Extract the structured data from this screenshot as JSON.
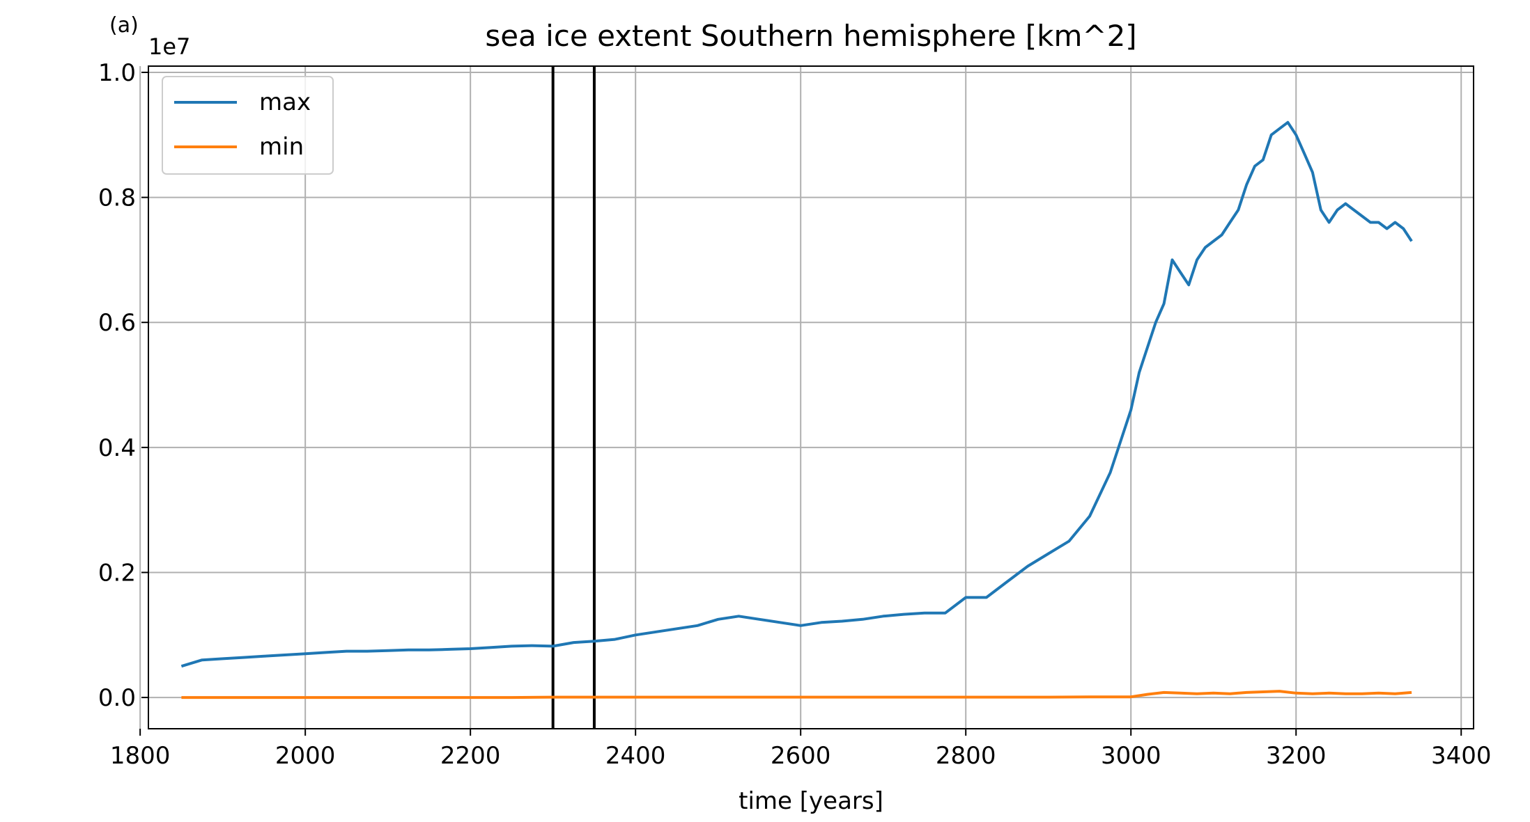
{
  "panel_label": "(a)",
  "chart_data": {
    "type": "line",
    "title": "sea ice extent Southern hemisphere [km^2]",
    "xlabel": "time [years]",
    "ylabel": "",
    "y_offset_label": "1e7",
    "xlim": [
      1810,
      3415
    ],
    "ylim": [
      -0.05,
      1.01
    ],
    "y_scale": 10000000,
    "xticks": [
      1800,
      2000,
      2200,
      2400,
      2600,
      2800,
      3000,
      3200,
      3400
    ],
    "yticks": [
      0.0,
      0.2,
      0.4,
      0.6,
      0.8,
      1.0
    ],
    "ytick_labels": [
      "0.0",
      "0.2",
      "0.4",
      "0.6",
      "0.8",
      "1.0"
    ],
    "grid": true,
    "legend_position": "top-left",
    "vlines": [
      2300,
      2350
    ],
    "series": [
      {
        "name": "max",
        "color": "#1f77b4",
        "x": [
          1850,
          1875,
          1900,
          1925,
          1950,
          1975,
          2000,
          2025,
          2050,
          2075,
          2100,
          2125,
          2150,
          2175,
          2200,
          2225,
          2250,
          2275,
          2300,
          2325,
          2350,
          2375,
          2400,
          2425,
          2450,
          2475,
          2500,
          2525,
          2550,
          2575,
          2600,
          2625,
          2650,
          2675,
          2700,
          2725,
          2750,
          2775,
          2800,
          2825,
          2850,
          2875,
          2900,
          2925,
          2950,
          2975,
          3000,
          3010,
          3020,
          3030,
          3040,
          3050,
          3060,
          3070,
          3080,
          3090,
          3100,
          3110,
          3120,
          3130,
          3140,
          3150,
          3160,
          3170,
          3180,
          3190,
          3200,
          3210,
          3220,
          3230,
          3240,
          3250,
          3260,
          3270,
          3280,
          3290,
          3300,
          3310,
          3320,
          3330,
          3340
        ],
        "values": [
          0.05,
          0.06,
          0.062,
          0.064,
          0.066,
          0.068,
          0.07,
          0.072,
          0.074,
          0.074,
          0.075,
          0.076,
          0.076,
          0.077,
          0.078,
          0.08,
          0.082,
          0.083,
          0.082,
          0.088,
          0.09,
          0.093,
          0.1,
          0.105,
          0.11,
          0.115,
          0.125,
          0.13,
          0.125,
          0.12,
          0.115,
          0.12,
          0.122,
          0.125,
          0.13,
          0.133,
          0.135,
          0.135,
          0.16,
          0.16,
          0.185,
          0.21,
          0.23,
          0.25,
          0.29,
          0.36,
          0.46,
          0.52,
          0.56,
          0.6,
          0.63,
          0.7,
          0.68,
          0.66,
          0.7,
          0.72,
          0.73,
          0.74,
          0.76,
          0.78,
          0.82,
          0.85,
          0.86,
          0.9,
          0.91,
          0.92,
          0.9,
          0.87,
          0.84,
          0.78,
          0.76,
          0.78,
          0.79,
          0.78,
          0.77,
          0.76,
          0.76,
          0.75,
          0.76,
          0.75,
          0.73
        ]
      },
      {
        "name": "min",
        "color": "#ff7f0e",
        "x": [
          1850,
          1900,
          1950,
          2000,
          2050,
          2100,
          2150,
          2200,
          2250,
          2300,
          2350,
          2400,
          2450,
          2500,
          2550,
          2600,
          2650,
          2700,
          2750,
          2800,
          2850,
          2900,
          2950,
          3000,
          3020,
          3040,
          3060,
          3080,
          3100,
          3120,
          3140,
          3160,
          3180,
          3200,
          3220,
          3240,
          3260,
          3280,
          3300,
          3320,
          3340
        ],
        "values": [
          0.0,
          0.0,
          0.0,
          0.0,
          0.0,
          0.0,
          0.0,
          0.0,
          0.0,
          0.0005,
          0.0005,
          0.0005,
          0.0005,
          0.0005,
          0.0005,
          0.0005,
          0.0005,
          0.0005,
          0.0005,
          0.0005,
          0.0005,
          0.0005,
          0.001,
          0.001,
          0.005,
          0.008,
          0.007,
          0.006,
          0.007,
          0.006,
          0.008,
          0.009,
          0.01,
          0.007,
          0.006,
          0.007,
          0.006,
          0.006,
          0.007,
          0.006,
          0.008
        ]
      }
    ]
  }
}
